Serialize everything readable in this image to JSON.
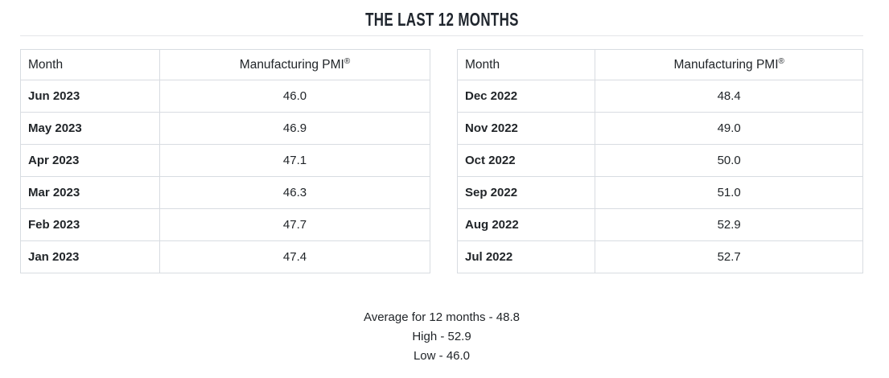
{
  "page": {
    "title": "THE LAST 12 MONTHS"
  },
  "table_left": {
    "header": {
      "month": "Month",
      "pmi": "Manufacturing PMI",
      "pmi_mark": "®"
    },
    "rows": [
      {
        "month": "Jun 2023",
        "value": "46.0"
      },
      {
        "month": "May 2023",
        "value": "46.9"
      },
      {
        "month": "Apr 2023",
        "value": "47.1"
      },
      {
        "month": "Mar 2023",
        "value": "46.3"
      },
      {
        "month": "Feb 2023",
        "value": "47.7"
      },
      {
        "month": "Jan 2023",
        "value": "47.4"
      }
    ]
  },
  "table_right": {
    "header": {
      "month": "Month",
      "pmi": "Manufacturing PMI",
      "pmi_mark": "®"
    },
    "rows": [
      {
        "month": "Dec 2022",
        "value": "48.4"
      },
      {
        "month": "Nov 2022",
        "value": "49.0"
      },
      {
        "month": "Oct 2022",
        "value": "50.0"
      },
      {
        "month": "Sep 2022",
        "value": "51.0"
      },
      {
        "month": "Aug 2022",
        "value": "52.9"
      },
      {
        "month": "Jul 2022",
        "value": "52.7"
      }
    ]
  },
  "summary": {
    "average": "Average for 12 months - 48.8",
    "high": "High - 52.9",
    "low": "Low - 46.0"
  },
  "colors": {
    "title": "#20262e",
    "text": "#212529",
    "border": "#d8dce1"
  }
}
